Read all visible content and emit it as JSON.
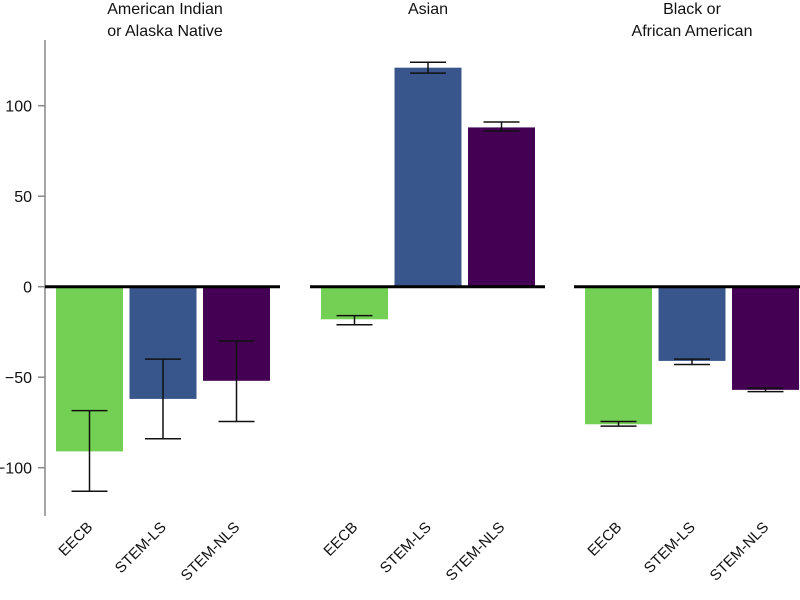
{
  "chart_data": {
    "type": "bar",
    "panels": [
      {
        "title_lines": [
          "American Indian",
          "or Alaska Native"
        ],
        "categories": [
          "EECB",
          "STEM-LS",
          "STEM-NLS"
        ],
        "values": [
          -91,
          -62,
          -52
        ],
        "error_low": [
          -113,
          -84,
          -74.5
        ],
        "error_high": [
          -68.5,
          -40,
          -30
        ]
      },
      {
        "title_lines": [
          "Asian"
        ],
        "categories": [
          "EECB",
          "STEM-LS",
          "STEM-NLS"
        ],
        "values": [
          -18,
          121,
          88
        ],
        "error_low": [
          -21,
          118,
          86
        ],
        "error_high": [
          -16,
          124,
          91
        ]
      },
      {
        "title_lines": [
          "Black or",
          "African American"
        ],
        "categories": [
          "EECB",
          "STEM-LS",
          "STEM-NLS"
        ],
        "values": [
          -76,
          -41,
          -57
        ],
        "error_low": [
          -77,
          -43,
          -58
        ],
        "error_high": [
          -74.5,
          -40,
          -56
        ]
      }
    ],
    "colors": {
      "EECB": "#74d055",
      "STEM-LS": "#39568c",
      "STEM-NLS": "#440154"
    },
    "yticks": [
      100,
      50,
      0,
      -50,
      -100
    ],
    "ylim": [
      -128,
      137
    ],
    "xlabel": "",
    "ylabel": "",
    "grid": false
  }
}
